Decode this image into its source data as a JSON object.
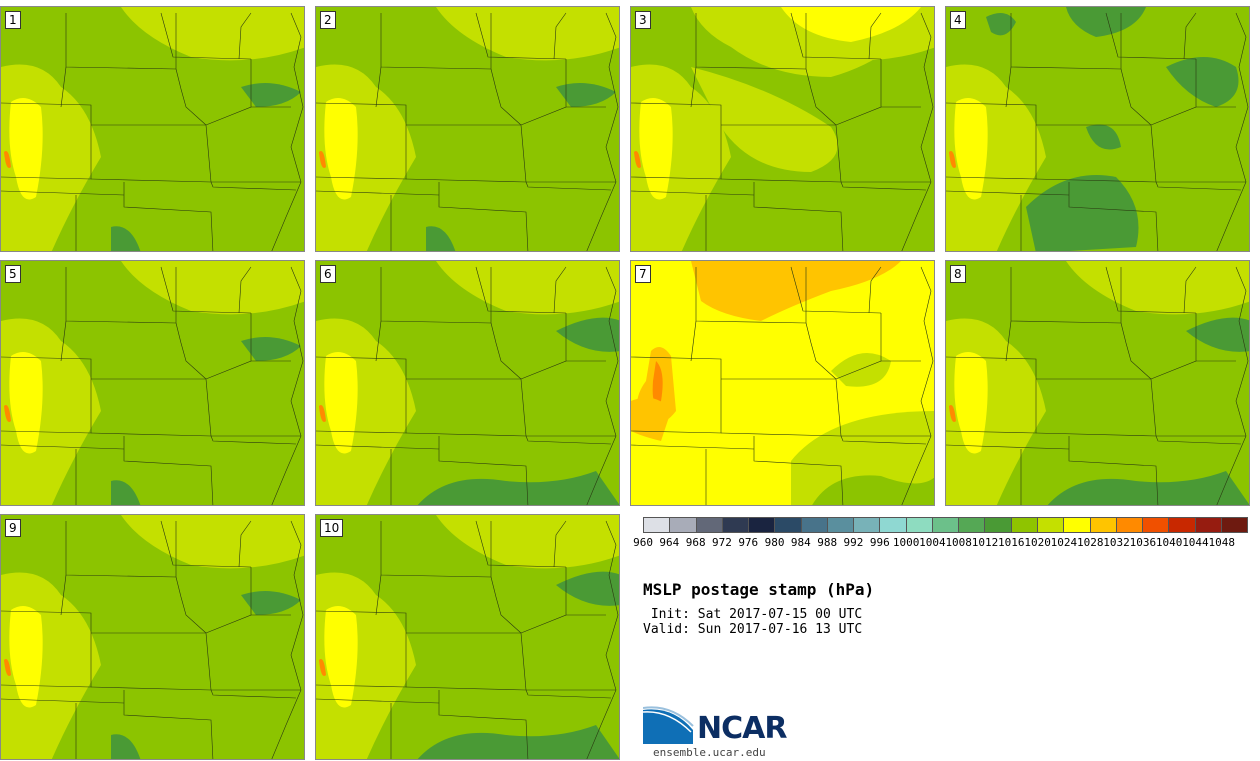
{
  "panels": [
    {
      "label": "1",
      "style": "med"
    },
    {
      "label": "2",
      "style": "med"
    },
    {
      "label": "3",
      "style": "high"
    },
    {
      "label": "4",
      "style": "low"
    },
    {
      "label": "5",
      "style": "med"
    },
    {
      "label": "6",
      "style": "medlow"
    },
    {
      "label": "7",
      "style": "vhigh"
    },
    {
      "label": "8",
      "style": "medlow"
    },
    {
      "label": "9",
      "style": "med"
    },
    {
      "label": "10",
      "style": "medlow"
    }
  ],
  "colorbar": {
    "labels": [
      "960",
      "964",
      "968",
      "972",
      "976",
      "980",
      "984",
      "988",
      "992",
      "996",
      "1000",
      "1004",
      "1008",
      "1012",
      "1016",
      "1020",
      "1024",
      "1028",
      "1032",
      "1036",
      "1040",
      "1044",
      "1048"
    ],
    "colors": [
      "#dde0e6",
      "#a8acb8",
      "#626878",
      "#2f3a52",
      "#1a2440",
      "#2b4a66",
      "#48738a",
      "#5a8f9e",
      "#78b2b8",
      "#8fd8d2",
      "#8edcc0",
      "#6cc08a",
      "#55a855",
      "#4a9a35",
      "#8fc400",
      "#c4e000",
      "#ffff00",
      "#ffc400",
      "#ff8a00",
      "#f05000",
      "#c82800",
      "#961c10",
      "#6e1a10"
    ]
  },
  "title": "MSLP postage stamp (hPa)",
  "init": " Init: Sat 2017-07-15 00 UTC",
  "valid": "Valid: Sun 2017-07-16 13 UTC",
  "logo": {
    "text": "NCAR",
    "url": "ensemble.ucar.edu",
    "colors": {
      "swoosh": "#0f6fb6",
      "text": "#0c2e63"
    }
  },
  "map_colors": {
    "base": "#8cc400",
    "light": "#c4e000",
    "yellow": "#ffff00",
    "dark": "#4a9a35",
    "orange": "#ffc400",
    "deep_orange": "#ff8a00",
    "border": "#2a3a10"
  }
}
